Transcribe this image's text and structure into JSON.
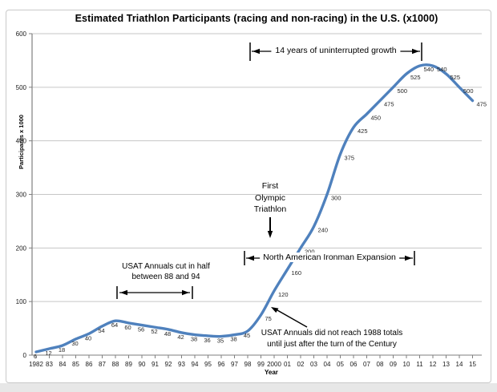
{
  "chart_data": {
    "type": "line",
    "title": "Estimated Triathlon Participants (racing and non-racing) in the U.S. (x1000)",
    "xlabel": "Year",
    "ylabel": "Participants x 1000",
    "ylim": [
      0,
      600
    ],
    "y_ticks": [
      0,
      100,
      200,
      300,
      400,
      500,
      600
    ],
    "grid": true,
    "legend": "none",
    "line_color": "#4F81BD",
    "categories": [
      "1982",
      "83",
      "84",
      "85",
      "86",
      "87",
      "88",
      "89",
      "90",
      "91",
      "92",
      "93",
      "94",
      "95",
      "96",
      "97",
      "98",
      "99",
      "2000",
      "01",
      "02",
      "03",
      "04",
      "05",
      "06",
      "07",
      "08",
      "09",
      "10",
      "11",
      "12",
      "13",
      "14",
      "15"
    ],
    "values": [
      6,
      12,
      18,
      30,
      40,
      54,
      64,
      60,
      56,
      52,
      48,
      42,
      38,
      36,
      35,
      38,
      45,
      75,
      120,
      160,
      200,
      240,
      300,
      375,
      425,
      450,
      475,
      500,
      525,
      540,
      540,
      525,
      500,
      475
    ],
    "annotations": {
      "growth_span": "14 years of uninterrupted growth",
      "usat_cut": [
        "USAT Annuals cut in half",
        "between 88 and 94"
      ],
      "olympic": [
        "First",
        "Olympic",
        "Triathlon"
      ],
      "ironman": "North American Ironman Expansion",
      "recovery": [
        "USAT Annuals did not reach 1988 totals",
        "until just after the turn of the Century"
      ]
    }
  }
}
